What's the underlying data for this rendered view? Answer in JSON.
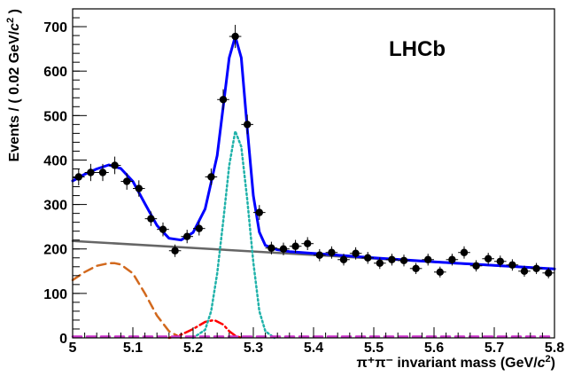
{
  "chart_data": {
    "type": "scatter",
    "title": "",
    "annotation": "LHCb",
    "xlabel_main": "π⁺π⁻ invariant mass (GeV/",
    "xlabel_c": "c",
    "xlabel_sup": "2",
    "xlabel_end": ")",
    "ylabel_main": "Events / ( 0.02 GeV/",
    "ylabel_c": "c",
    "ylabel_sup": "2",
    "ylabel_end": " )",
    "xlim": [
      5.0,
      5.8
    ],
    "ylim": [
      0,
      740
    ],
    "x_ticks": [
      5.0,
      5.1,
      5.2,
      5.3,
      5.4,
      5.5,
      5.6,
      5.7,
      5.8
    ],
    "x_tick_labels": [
      "5",
      "5.1",
      "5.2",
      "5.3",
      "5.4",
      "5.5",
      "5.6",
      "5.7",
      "5.8"
    ],
    "y_ticks": [
      0,
      100,
      200,
      300,
      400,
      500,
      600,
      700
    ],
    "y_tick_labels": [
      "0",
      "100",
      "200",
      "300",
      "400",
      "500",
      "600",
      "700"
    ],
    "grid": false,
    "data_points": {
      "x": [
        5.01,
        5.03,
        5.05,
        5.07,
        5.09,
        5.11,
        5.13,
        5.15,
        5.17,
        5.19,
        5.21,
        5.23,
        5.25,
        5.27,
        5.29,
        5.31,
        5.33,
        5.35,
        5.37,
        5.39,
        5.41,
        5.43,
        5.45,
        5.47,
        5.49,
        5.51,
        5.53,
        5.55,
        5.57,
        5.59,
        5.61,
        5.63,
        5.65,
        5.67,
        5.69,
        5.71,
        5.73,
        5.75,
        5.77,
        5.79
      ],
      "y": [
        362,
        372,
        372,
        388,
        352,
        336,
        268,
        244,
        196,
        228,
        246,
        362,
        536,
        678,
        480,
        282,
        202,
        200,
        206,
        212,
        186,
        192,
        176,
        190,
        180,
        168,
        176,
        174,
        156,
        176,
        148,
        176,
        192,
        162,
        178,
        172,
        164,
        150,
        156,
        146
      ],
      "xerr": 0.01,
      "color": "#000000"
    },
    "series": [
      {
        "role": "total fit",
        "color": "#0000ff",
        "style": "solid",
        "x": [
          5.0,
          5.02,
          5.04,
          5.06,
          5.08,
          5.1,
          5.12,
          5.14,
          5.16,
          5.18,
          5.2,
          5.22,
          5.24,
          5.25,
          5.26,
          5.27,
          5.28,
          5.29,
          5.3,
          5.31,
          5.32,
          5.34,
          5.36,
          5.4,
          5.5,
          5.6,
          5.7,
          5.8
        ],
        "y": [
          353,
          368,
          380,
          389,
          381,
          352,
          302,
          253,
          224,
          220,
          237,
          290,
          410,
          520,
          630,
          678,
          630,
          470,
          320,
          238,
          208,
          198,
          194,
          190,
          180,
          171,
          163,
          155
        ]
      },
      {
        "role": "linear background",
        "color": "#666666",
        "style": "solid",
        "x": [
          5.0,
          5.8
        ],
        "y": [
          218,
          155
        ]
      },
      {
        "role": "peak component",
        "color": "#20b2aa",
        "style": "dotted",
        "x": [
          5.2,
          5.22,
          5.23,
          5.24,
          5.25,
          5.26,
          5.27,
          5.28,
          5.29,
          5.3,
          5.31,
          5.32,
          5.335
        ],
        "y": [
          0,
          18,
          60,
          145,
          262,
          388,
          465,
          430,
          310,
          170,
          60,
          15,
          0
        ]
      },
      {
        "role": "broad component",
        "color": "#d2691e",
        "style": "dashed",
        "x": [
          5.0,
          5.02,
          5.04,
          5.06,
          5.07,
          5.08,
          5.1,
          5.12,
          5.14,
          5.16,
          5.18
        ],
        "y": [
          130,
          148,
          162,
          168,
          168,
          165,
          145,
          100,
          50,
          15,
          0
        ]
      },
      {
        "role": "small component",
        "color": "#ff0000",
        "style": "dashdot",
        "x": [
          5.16,
          5.18,
          5.2,
          5.22,
          5.235,
          5.25,
          5.26,
          5.27,
          5.28
        ],
        "y": [
          0,
          7,
          20,
          36,
          40,
          30,
          15,
          5,
          0
        ]
      },
      {
        "role": "zero-level component",
        "color": "#cc33cc",
        "style": "dashed",
        "x": [
          5.0,
          5.8
        ],
        "y": [
          3,
          3
        ]
      }
    ]
  }
}
